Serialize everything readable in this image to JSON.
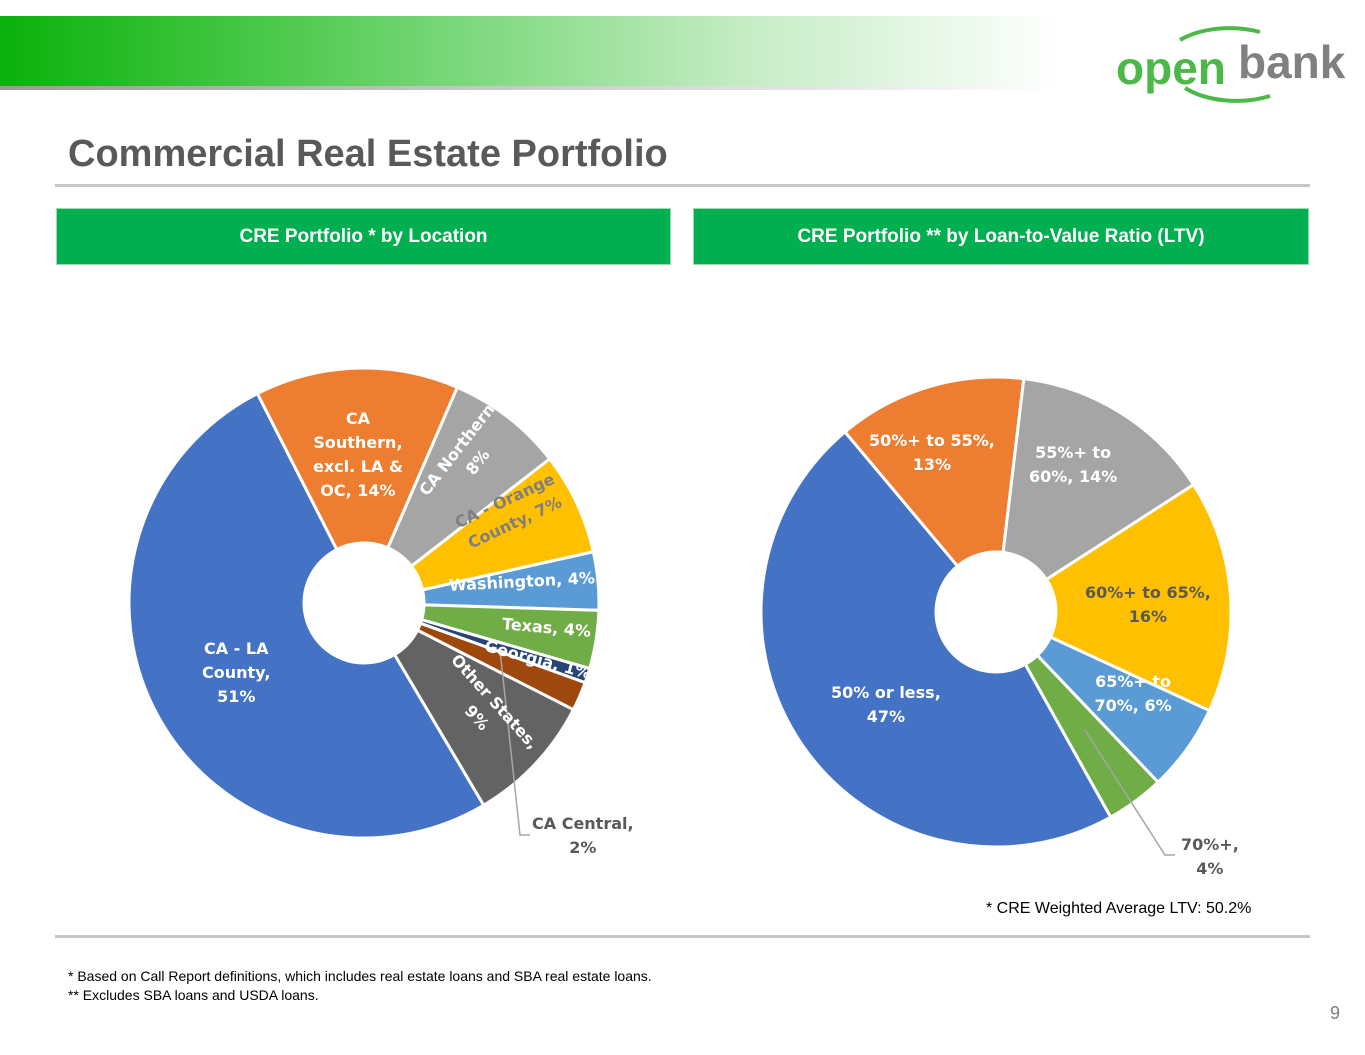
{
  "header": {
    "logo_text_1": "open",
    "logo_text_2": "bank",
    "brand_green": "#4cb848",
    "brand_gray": "#808080"
  },
  "title": "Commercial Real Estate Portfolio",
  "panels": [
    {
      "header": "CRE Portfolio * by Location"
    },
    {
      "header": "CRE Portfolio ** by Loan-to-Value Ratio (LTV)"
    }
  ],
  "chart_data": [
    {
      "type": "pie",
      "donut": true,
      "title": "CRE Portfolio * by Location",
      "categories": [
        "CA Southern, excl. LA & OC",
        "CA Northern",
        "CA - Orange County",
        "Washington",
        "Texas",
        "Georgia",
        "CA Central",
        "Other States",
        "CA - LA County"
      ],
      "values": [
        14,
        8,
        7,
        4,
        4,
        1,
        2,
        9,
        51
      ],
      "unit": "%",
      "labels": [
        "CA\nSouthern,\nexcl. LA &\nOC, 14%",
        "CA Northern,\n8%",
        "CA - Orange\nCounty, 7%",
        "Washington, 4%",
        "Texas, 4%",
        "Georgia, 1%",
        "CA Central,\n2%",
        "Other States,\n9%",
        "CA - LA\nCounty,\n51%"
      ],
      "colors": [
        "#ED7D31",
        "#A5A5A5",
        "#FFC000",
        "#5B9BD5",
        "#70AD47",
        "#264478",
        "#9E480E",
        "#636363",
        "#4472C4"
      ]
    },
    {
      "type": "pie",
      "donut": true,
      "title": "CRE Portfolio ** by Loan-to-Value Ratio (LTV)",
      "categories": [
        "50%+ to 55%",
        "55%+ to 60%",
        "60%+ to 65%",
        "65%+ to 70%",
        "70%+",
        "50% or less"
      ],
      "values": [
        13,
        14,
        16,
        6,
        4,
        47
      ],
      "unit": "%",
      "labels": [
        "50%+ to 55%,\n13%",
        "55%+ to\n60%, 14%",
        "60%+ to 65%,\n16%",
        "65%+ to\n70%, 6%",
        "70%+,\n4%",
        "50% or less,\n47%"
      ],
      "colors": [
        "#ED7D31",
        "#A5A5A5",
        "#FFC000",
        "#5B9BD5",
        "#70AD47",
        "#4472C4"
      ],
      "annotation": "* CRE Weighted Average LTV: 50.2%"
    }
  ],
  "footnotes": [
    "* Based on Call Report definitions, which includes real estate loans and SBA real estate loans.",
    "** Excludes SBA loans and USDA loans."
  ],
  "page_number": "9"
}
